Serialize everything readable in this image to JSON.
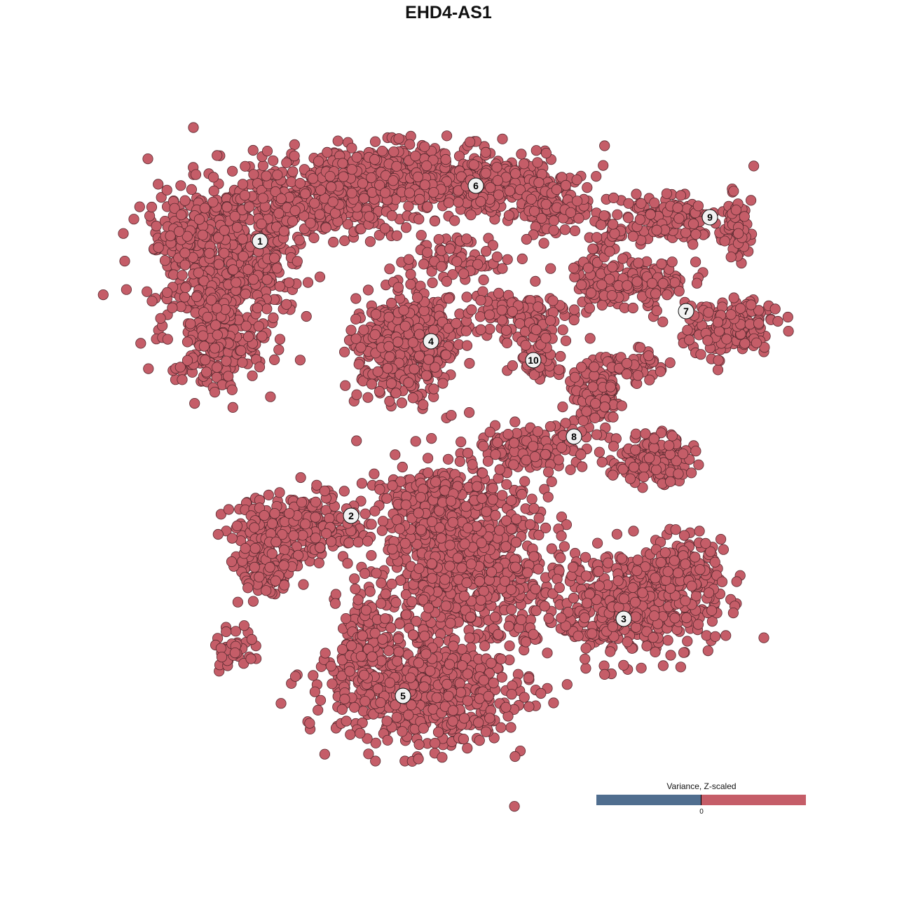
{
  "chart_data": {
    "type": "scatter",
    "title": "EHD4-AS1",
    "xlabel": "",
    "ylabel": "",
    "grid": false,
    "axes_visible": false,
    "point_color": "#c55d68",
    "point_outline": "#5a2a30",
    "cluster_labels": [
      "1",
      "2",
      "3",
      "4",
      "5",
      "6",
      "7",
      "8",
      "9",
      "10"
    ],
    "legend": {
      "title": "Variance, Z-scaled",
      "placement": "bottom-right",
      "tick_label": "0",
      "low_color": "#506e8f",
      "high_color": "#c55d68"
    }
  }
}
